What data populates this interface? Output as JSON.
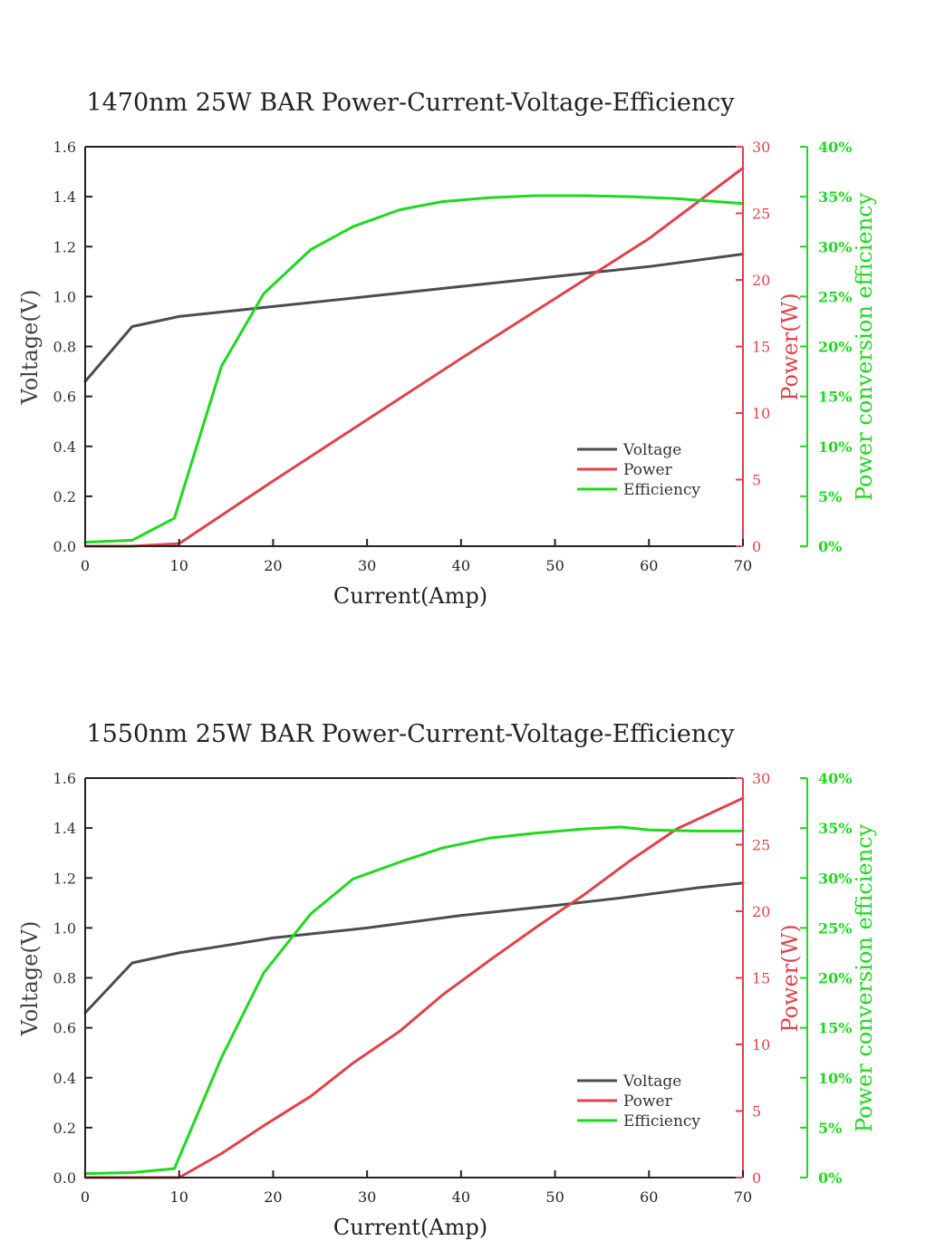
{
  "colors": {
    "voltage": "#4d4d4f",
    "power": "#e0424a",
    "efficiency": "#1ed91e",
    "axis": "#222222"
  },
  "chart_data": [
    {
      "type": "line",
      "title": "1470nm 25W BAR Power-Current-Voltage-Efficiency",
      "xlabel": "Current(Amp)",
      "ylabel_left": "Voltage(V)",
      "ylabel_right": "Power(W)",
      "ylabel_right2": "Power conversion efficiency",
      "xlim": [
        0,
        70
      ],
      "ylim_left": [
        0,
        1.6
      ],
      "ylim_right": [
        0,
        30
      ],
      "ylim_right2": [
        0,
        40
      ],
      "x_ticks": [
        "0",
        "10",
        "20",
        "30",
        "40",
        "50",
        "60",
        "70"
      ],
      "y_left_ticks": [
        "0.0",
        "0.2",
        "0.4",
        "0.6",
        "0.8",
        "1.0",
        "1.2",
        "1.4",
        "1.6"
      ],
      "y_right_ticks": [
        "0",
        "5",
        "10",
        "15",
        "20",
        "25",
        "30"
      ],
      "y_right2_ticks": [
        "0%",
        "5%",
        "10%",
        "15%",
        "20%",
        "25%",
        "30%",
        "35%",
        "40%"
      ],
      "legend_position": "lower-right",
      "series": [
        {
          "name": "Voltage",
          "axis": "left",
          "x": [
            0,
            5,
            10,
            15,
            20,
            30,
            40,
            50,
            60,
            70
          ],
          "values": [
            0.66,
            0.88,
            0.92,
            0.94,
            0.96,
            1.0,
            1.04,
            1.08,
            1.12,
            1.17
          ]
        },
        {
          "name": "Power",
          "axis": "right",
          "x": [
            0,
            5,
            10,
            20,
            30,
            40,
            50,
            60,
            70
          ],
          "values": [
            0,
            0,
            0.2,
            4.9,
            9.5,
            14.1,
            18.6,
            23.1,
            28.4
          ]
        },
        {
          "name": "Efficiency",
          "axis": "right2",
          "x": [
            0,
            5,
            9.5,
            14.5,
            19,
            24,
            28.5,
            33.5,
            38,
            43,
            48,
            53,
            58,
            63,
            70
          ],
          "values": [
            0.4,
            0.6,
            2.8,
            18,
            25.3,
            29.7,
            32,
            33.7,
            34.5,
            34.9,
            35.1,
            35.1,
            35,
            34.8,
            34.3
          ]
        }
      ]
    },
    {
      "type": "line",
      "title": "1550nm 25W BAR Power-Current-Voltage-Efficiency",
      "xlabel": "Current(Amp)",
      "ylabel_left": "Voltage(V)",
      "ylabel_right": "Power(W)",
      "ylabel_right2": "Power conversion efficiency",
      "xlim": [
        0,
        70
      ],
      "ylim_left": [
        0,
        1.6
      ],
      "ylim_right": [
        0,
        30
      ],
      "ylim_right2": [
        0,
        40
      ],
      "x_ticks": [
        "0",
        "10",
        "20",
        "30",
        "40",
        "50",
        "60",
        "70"
      ],
      "y_left_ticks": [
        "0.0",
        "0.2",
        "0.4",
        "0.6",
        "0.8",
        "1.0",
        "1.2",
        "1.4",
        "1.6"
      ],
      "y_right_ticks": [
        "0",
        "5",
        "10",
        "15",
        "20",
        "25",
        "30"
      ],
      "y_right2_ticks": [
        "0%",
        "5%",
        "10%",
        "15%",
        "20%",
        "25%",
        "30%",
        "35%",
        "40%"
      ],
      "legend_position": "lower-right",
      "series": [
        {
          "name": "Voltage",
          "axis": "left",
          "x": [
            0,
            5,
            10,
            15,
            20,
            30,
            40,
            50,
            57,
            65,
            70
          ],
          "values": [
            0.66,
            0.86,
            0.9,
            0.93,
            0.96,
            1.0,
            1.05,
            1.09,
            1.12,
            1.16,
            1.18
          ]
        },
        {
          "name": "Power",
          "axis": "right",
          "x": [
            0,
            10,
            14.5,
            19,
            24,
            28.5,
            33.5,
            38,
            43,
            48,
            53,
            58,
            63,
            70
          ],
          "values": [
            0,
            0,
            1.8,
            3.9,
            6.1,
            8.6,
            11,
            13.7,
            16.3,
            18.8,
            21.2,
            23.8,
            26.2,
            28.5
          ]
        },
        {
          "name": "Efficiency",
          "axis": "right2",
          "x": [
            0,
            5,
            9.5,
            14.5,
            19,
            24,
            28.5,
            33.5,
            38,
            43,
            48,
            53,
            57,
            60,
            65,
            70
          ],
          "values": [
            0.4,
            0.5,
            0.9,
            12,
            20.5,
            26.4,
            29.9,
            31.6,
            33,
            34,
            34.5,
            34.9,
            35.1,
            34.8,
            34.7,
            34.7
          ]
        }
      ]
    }
  ]
}
